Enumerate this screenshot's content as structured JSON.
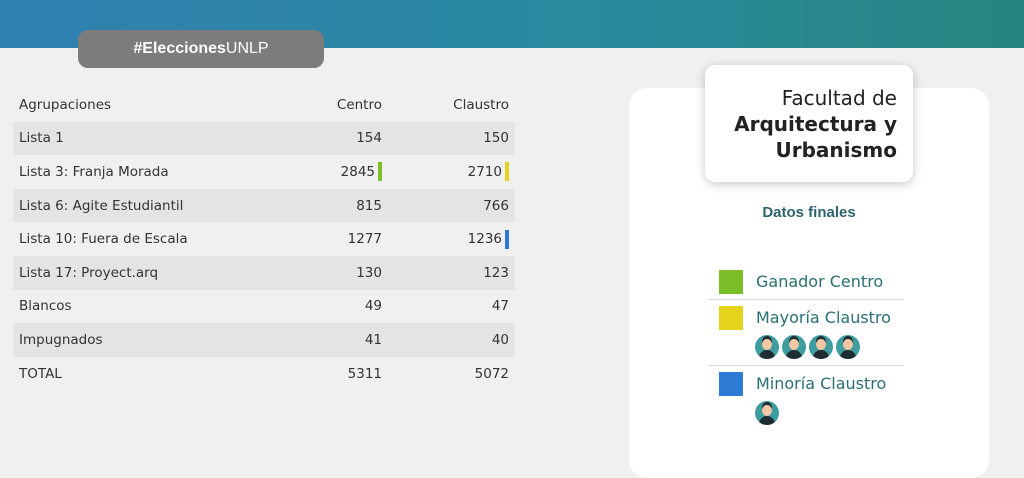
{
  "hashtag": {
    "bold": "#Elecciones",
    "rest": "UNLP"
  },
  "table": {
    "headers": [
      "Agrupaciones",
      "Centro",
      "Claustro"
    ],
    "rows": [
      {
        "name": "Lista 1",
        "centro": "154",
        "claustro": "150",
        "centro_mark": "",
        "claustro_mark": ""
      },
      {
        "name": "Lista 3: Franja Morada",
        "centro": "2845",
        "claustro": "2710",
        "centro_mark": "#7cbd2a",
        "claustro_mark": "#e6d31e"
      },
      {
        "name": "Lista 6: Agite Estudiantil",
        "centro": "815",
        "claustro": "766",
        "centro_mark": "",
        "claustro_mark": ""
      },
      {
        "name": "Lista 10: Fuera de Escala",
        "centro": "1277",
        "claustro": "1236",
        "centro_mark": "",
        "claustro_mark": "#2e7bd6"
      },
      {
        "name": "Lista 17: Proyect.arq",
        "centro": "130",
        "claustro": "123",
        "centro_mark": "",
        "claustro_mark": ""
      },
      {
        "name": "Blancos",
        "centro": "49",
        "claustro": "47",
        "centro_mark": "",
        "claustro_mark": ""
      },
      {
        "name": "Impugnados",
        "centro": "41",
        "claustro": "40",
        "centro_mark": "",
        "claustro_mark": ""
      },
      {
        "name": "TOTAL",
        "centro": "5311",
        "claustro": "5072",
        "centro_mark": "",
        "claustro_mark": ""
      }
    ]
  },
  "faculty": {
    "line1": "Facultad de",
    "line2": "Arquitectura y",
    "line3": "Urbanismo"
  },
  "datos_finales": "Datos finales",
  "legend": [
    {
      "label": "Ganador Centro",
      "color": "#7cbd2a",
      "avatars": 0
    },
    {
      "label": "Mayoría Claustro",
      "color": "#e6d31e",
      "avatars": 4
    },
    {
      "label": "Minoría Claustro",
      "color": "#2e7bd6",
      "avatars": 1
    }
  ],
  "colors": {
    "header_gradient": [
      "#2f7fb0",
      "#26857f"
    ],
    "hashtag_bg": "#7c7c7c",
    "accent_text": "#2e6470"
  }
}
